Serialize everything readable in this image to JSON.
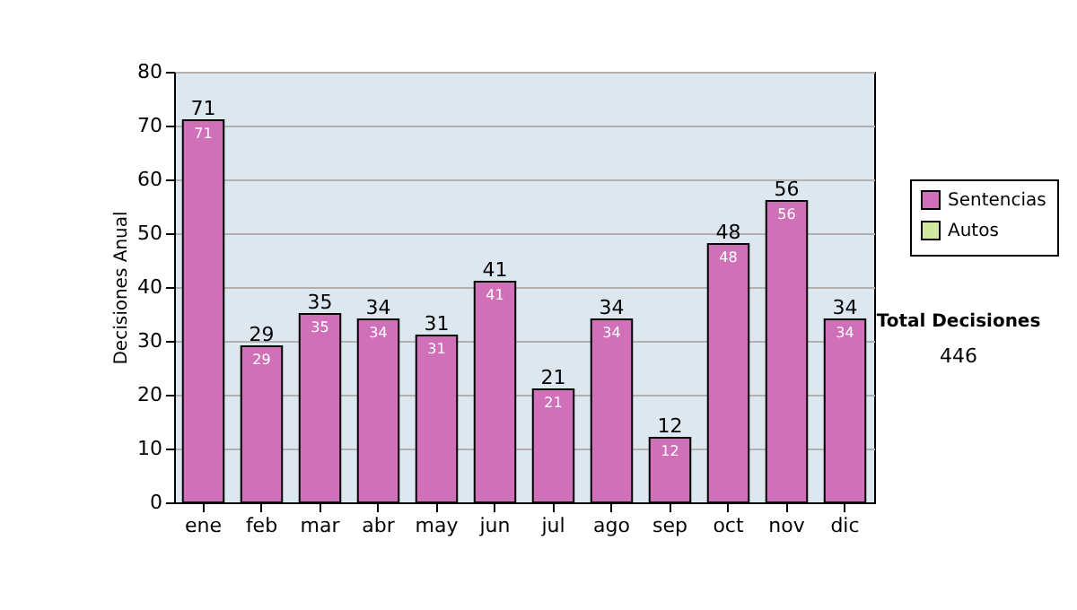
{
  "chart_data": {
    "type": "bar",
    "stacked": true,
    "ylabel": "Decisiones Anual",
    "categories": [
      "ene",
      "feb",
      "mar",
      "abr",
      "may",
      "jun",
      "jul",
      "ago",
      "sep",
      "oct",
      "nov",
      "dic"
    ],
    "series": [
      {
        "name": "Sentencias",
        "color": "#d070b8",
        "values": [
          71,
          29,
          35,
          34,
          31,
          41,
          21,
          34,
          12,
          48,
          56,
          34
        ]
      },
      {
        "name": "Autos",
        "color": "#d0e8a0",
        "values": [
          null,
          null,
          null,
          null,
          null,
          null,
          null,
          null,
          null,
          null,
          null,
          null
        ]
      }
    ],
    "data_labels": true,
    "totals": [
      "71",
      "29",
      "35",
      "34",
      "31",
      "41",
      "21",
      "34",
      "12",
      "48",
      "56",
      "34"
    ],
    "ylim": [
      0,
      80
    ],
    "yticks": [
      0,
      10,
      20,
      30,
      40,
      50,
      60,
      70,
      80
    ],
    "grid": "y",
    "legend": "right",
    "annotations": [
      "Total Decisiones",
      "446"
    ]
  }
}
